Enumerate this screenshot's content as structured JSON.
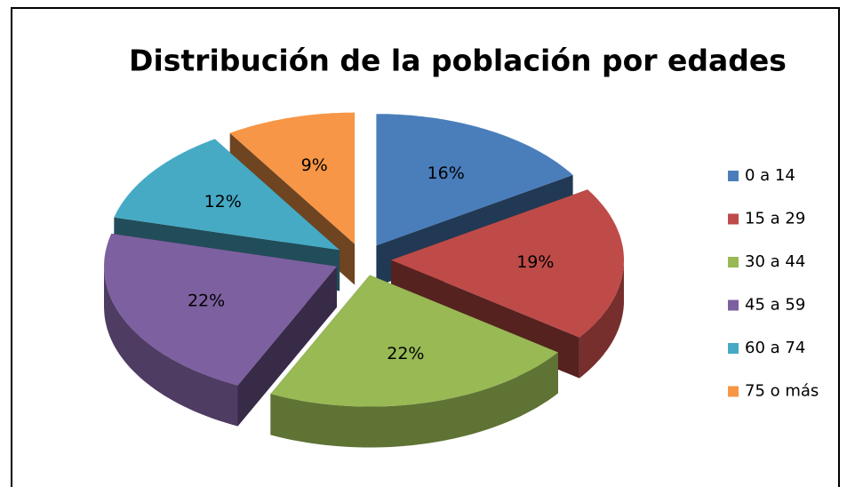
{
  "chart_data": {
    "type": "pie",
    "title": "Distribución de la población por edades",
    "categories": [
      "0 a 14",
      "15 a 29",
      "30 a 44",
      "45 a 59",
      "60 a 74",
      "75 o más"
    ],
    "values": [
      16,
      19,
      22,
      22,
      12,
      9
    ],
    "value_labels": [
      "16%",
      "19%",
      "22%",
      "22%",
      "12%",
      "9%"
    ],
    "colors": [
      "#4a7ebb",
      "#be4b48",
      "#98b954",
      "#7d60a0",
      "#46aac5",
      "#f79646"
    ],
    "legend": "right"
  }
}
